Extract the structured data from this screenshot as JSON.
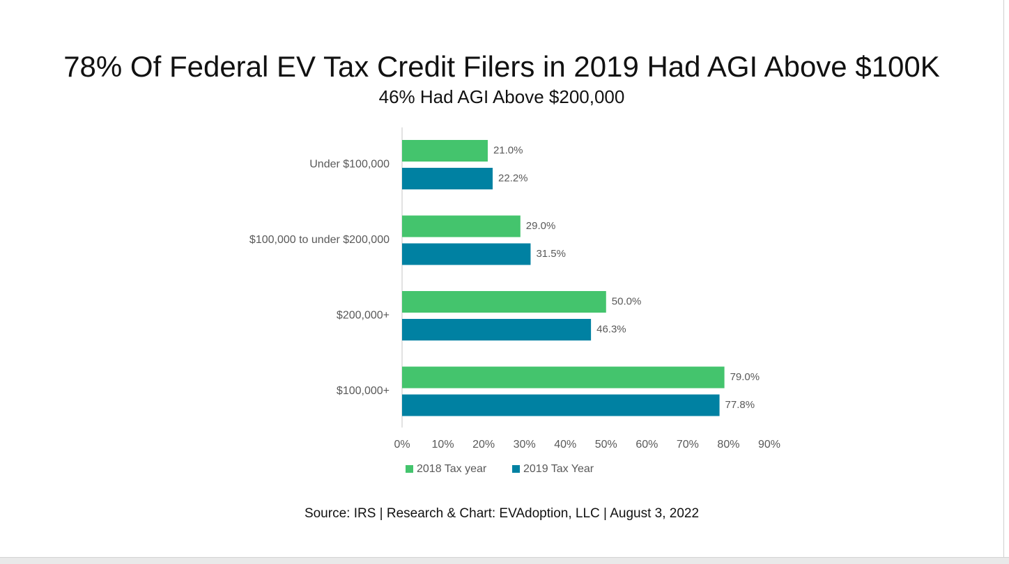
{
  "page": {
    "title": "78% Of Federal EV Tax Credit Filers in 2019 Had AGI Above $100K",
    "subtitle": "46% Had AGI Above $200,000",
    "source": "Source: IRS | Research & Chart: EVAdoption, LLC | August 3, 2022"
  },
  "chart_data": {
    "type": "bar",
    "orientation": "horizontal",
    "title": "78% Of Federal EV Tax Credit Filers in 2019 Had AGI Above $100K",
    "subtitle": "46% Had AGI Above $200,000",
    "categories": [
      "Under $100,000",
      "$100,000 to under $200,000",
      "$200,000+",
      "$100,000+"
    ],
    "series": [
      {
        "name": "2018 Tax year",
        "color": "#44c46d",
        "values": [
          21.0,
          29.0,
          50.0,
          79.0
        ],
        "labels": [
          "21.0%",
          "29.0%",
          "50.0%",
          "79.0%"
        ]
      },
      {
        "name": "2019 Tax Year",
        "color": "#0081a2",
        "values": [
          22.2,
          31.5,
          46.3,
          77.8
        ],
        "labels": [
          "22.2%",
          "31.5%",
          "46.3%",
          "77.8%"
        ]
      }
    ],
    "xlim": [
      0,
      90
    ],
    "xticks": [
      0,
      10,
      20,
      30,
      40,
      50,
      60,
      70,
      80,
      90
    ],
    "xtick_labels": [
      "0%",
      "10%",
      "20%",
      "30%",
      "40%",
      "50%",
      "60%",
      "70%",
      "80%",
      "90%"
    ],
    "xlabel": "",
    "ylabel": "",
    "grid": false,
    "legend": "bottom-center",
    "axis_color": "#d9d9d9",
    "text_color": "#595959"
  }
}
